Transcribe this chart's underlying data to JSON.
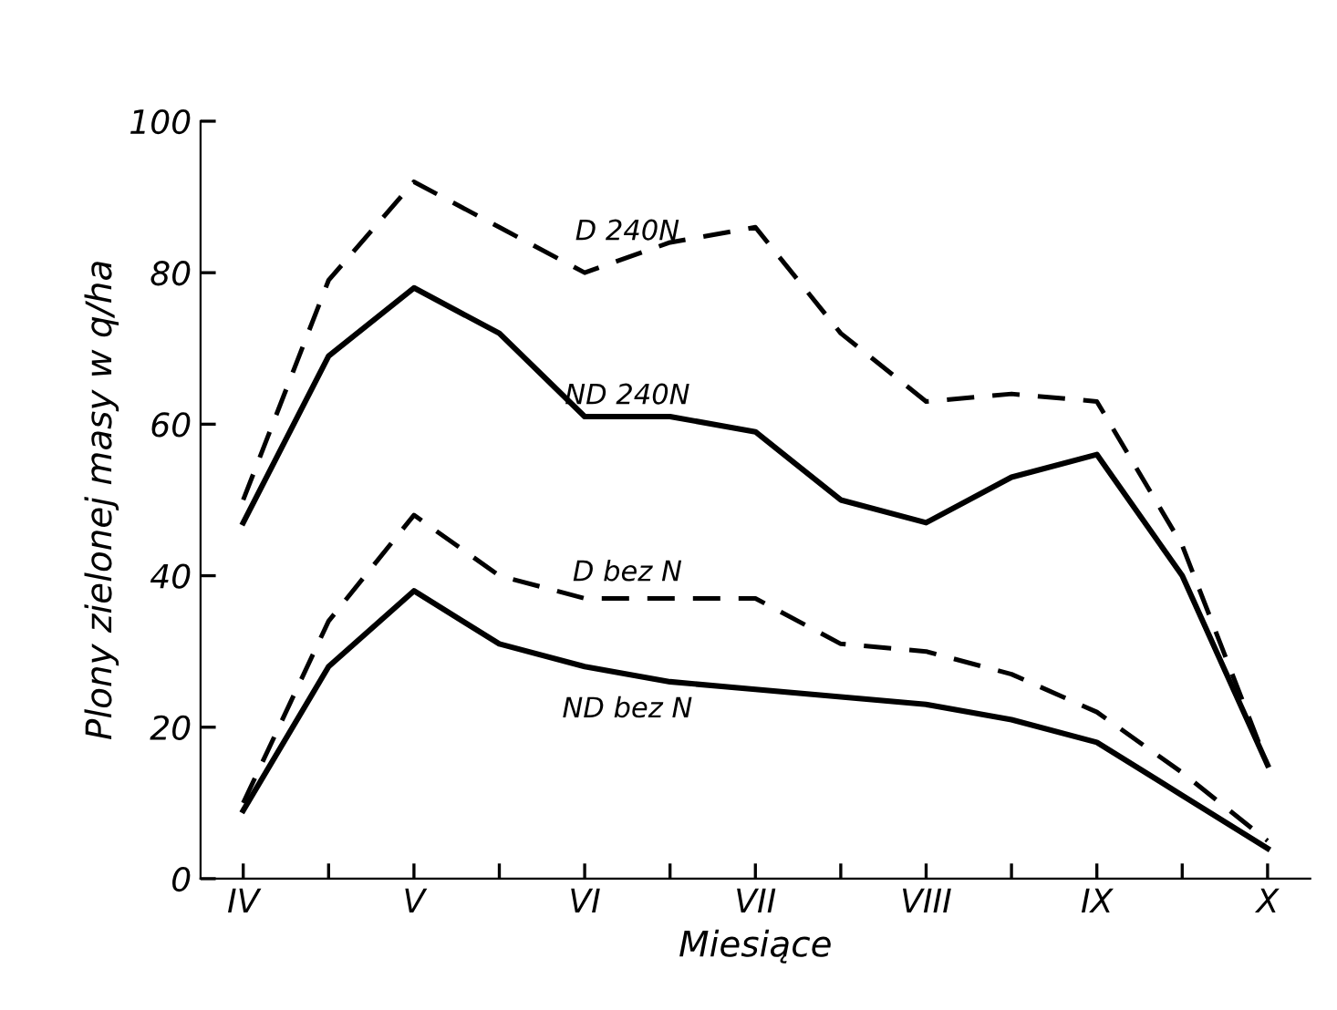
{
  "chart_data": {
    "type": "line",
    "xlabel": "Miesiące",
    "ylabel": "Plony zielonej masy w q/ha",
    "categories": [
      "IV",
      null,
      "V",
      null,
      "VI",
      null,
      "VII",
      null,
      "VIII",
      null,
      "IX",
      null,
      "X"
    ],
    "ylim": [
      0,
      100
    ],
    "yticks": [
      0,
      20,
      40,
      60,
      80,
      100
    ],
    "grid": false,
    "legend": false,
    "marker": "none",
    "series": [
      {
        "name": "D 240N",
        "color": "#000000",
        "line_style": "dashed",
        "values": [
          50,
          79,
          92,
          86,
          80,
          84,
          86,
          72,
          63,
          64,
          63,
          44,
          15
        ]
      },
      {
        "name": "ND 240N",
        "color": "#000000",
        "line_style": "solid",
        "values": [
          47,
          69,
          78,
          72,
          61,
          61,
          59,
          50,
          47,
          53,
          56,
          40,
          15
        ]
      },
      {
        "name": "D bez N",
        "color": "#000000",
        "line_style": "dashed",
        "values": [
          10,
          34,
          48,
          40,
          37,
          37,
          37,
          31,
          30,
          27,
          22,
          14,
          5
        ]
      },
      {
        "name": "ND bez N",
        "color": "#000000",
        "line_style": "solid",
        "values": [
          9,
          28,
          38,
          31,
          28,
          26,
          25,
          24,
          23,
          21,
          18,
          11,
          4
        ]
      }
    ]
  }
}
